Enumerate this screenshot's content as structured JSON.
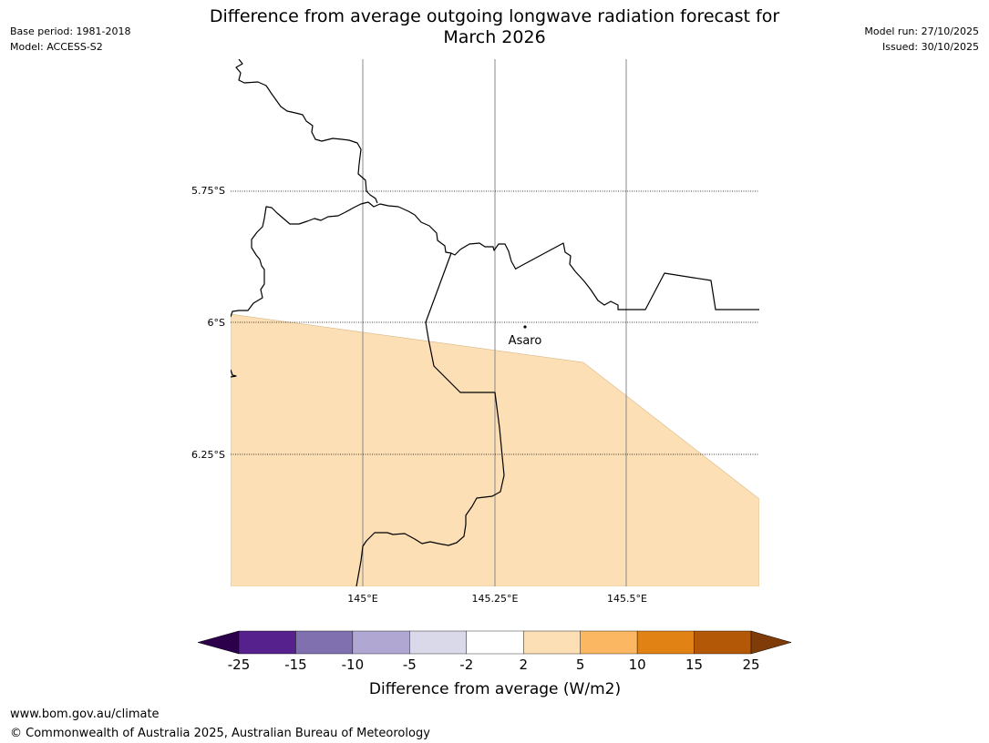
{
  "title": {
    "line1": "Difference from average outgoing longwave radiation forecast for",
    "line2": "March 2026"
  },
  "meta_left": {
    "base_period": "Base period: 1981-2018",
    "model": "Model: ACCESS-S2"
  },
  "meta_right": {
    "model_run": "Model run: 27/10/2025",
    "issued": "Issued: 30/10/2025"
  },
  "map": {
    "latitude_labels": [
      "5.75°S",
      "6°S",
      "6.25°S"
    ],
    "longitude_labels": [
      "145°E",
      "145.25°E",
      "145.5°E"
    ],
    "place": "Asaro",
    "shaded_category": "2 to 5",
    "shade_color": "#fcdfb4",
    "border_color": "#000000"
  },
  "colorbar": {
    "ticks": [
      "-25",
      "-15",
      "-10",
      "-5",
      "-2",
      "2",
      "5",
      "10",
      "15",
      "25"
    ],
    "colors": [
      "#56208d",
      "#8170b0",
      "#b0a8d2",
      "#dad9ea",
      "#ffffff",
      "#fcdfb4",
      "#fbb762",
      "#e08214",
      "#b35806"
    ],
    "under_color": "#2d004b",
    "over_color": "#7f3b08",
    "label": "Difference from average (W/m2)"
  },
  "footer": {
    "url": "www.bom.gov.au/climate",
    "copyright": "© Commonwealth of Australia 2025, Australian Bureau of Meteorology"
  }
}
